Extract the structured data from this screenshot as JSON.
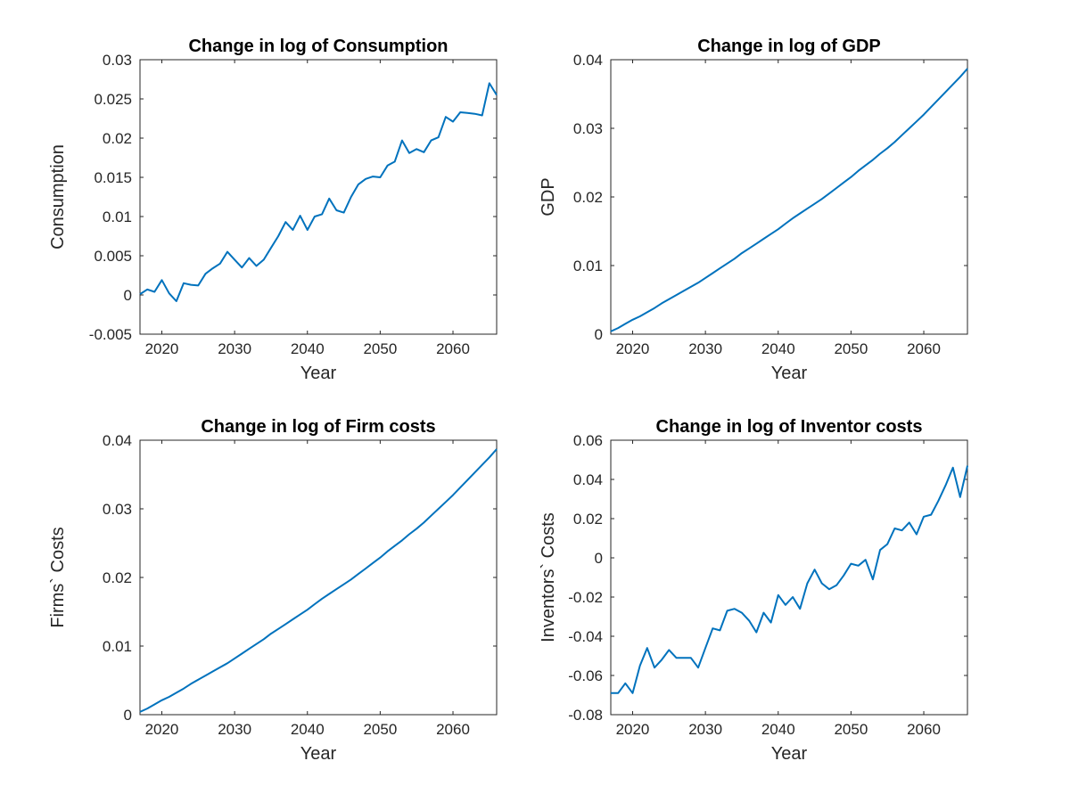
{
  "colors": {
    "line": "#0072bd",
    "axis": "#262626",
    "background": "#ffffff"
  },
  "chart_data": [
    {
      "type": "line",
      "title": "Change in log of Consumption",
      "xlabel": "Year",
      "ylabel": "Consumption",
      "xlim": [
        2017,
        2066
      ],
      "ylim": [
        -0.005,
        0.03
      ],
      "xticks": [
        2020,
        2030,
        2040,
        2050,
        2060
      ],
      "xtick_labels": [
        "2020",
        "2030",
        "2040",
        "2050",
        "2060"
      ],
      "yticks": [
        -0.005,
        0,
        0.005,
        0.01,
        0.015,
        0.02,
        0.025,
        0.03
      ],
      "ytick_labels": [
        "-0.005",
        "0",
        "0.005",
        "0.01",
        "0.015",
        "0.02",
        "0.025",
        "0.03"
      ],
      "grid": false,
      "series": [
        {
          "x": [
            2017,
            2018,
            2019,
            2020,
            2021,
            2022,
            2023,
            2024,
            2025,
            2026,
            2027,
            2028,
            2029,
            2030,
            2031,
            2032,
            2033,
            2034,
            2035,
            2036,
            2037,
            2038,
            2039,
            2040,
            2041,
            2042,
            2043,
            2044,
            2045,
            2046,
            2047,
            2048,
            2049,
            2050,
            2051,
            2052,
            2053,
            2054,
            2055,
            2056,
            2057,
            2058,
            2059,
            2060,
            2061,
            2062,
            2063,
            2064,
            2065,
            2066
          ],
          "y": [
            0.0001,
            0.0007,
            0.0004,
            0.0019,
            0.0002,
            -0.0008,
            0.0015,
            0.0013,
            0.0012,
            0.0027,
            0.0034,
            0.004,
            0.0055,
            0.0045,
            0.0035,
            0.0047,
            0.0037,
            0.0045,
            0.006,
            0.0075,
            0.0093,
            0.0083,
            0.0101,
            0.0083,
            0.01,
            0.0103,
            0.0123,
            0.0108,
            0.0105,
            0.0125,
            0.0141,
            0.0148,
            0.0151,
            0.015,
            0.0165,
            0.017,
            0.0197,
            0.0181,
            0.0186,
            0.0182,
            0.0197,
            0.0201,
            0.0227,
            0.0221,
            0.0233,
            0.0232,
            0.0231,
            0.0229,
            0.027,
            0.0255
          ]
        }
      ]
    },
    {
      "type": "line",
      "title": "Change in log of GDP",
      "xlabel": "Year",
      "ylabel": "GDP",
      "xlim": [
        2017,
        2066
      ],
      "ylim": [
        0,
        0.04
      ],
      "xticks": [
        2020,
        2030,
        2040,
        2050,
        2060
      ],
      "xtick_labels": [
        "2020",
        "2030",
        "2040",
        "2050",
        "2060"
      ],
      "yticks": [
        0,
        0.01,
        0.02,
        0.03,
        0.04
      ],
      "ytick_labels": [
        "0",
        "0.01",
        "0.02",
        "0.03",
        "0.04"
      ],
      "grid": false,
      "series": [
        {
          "x": [
            2017,
            2018,
            2019,
            2020,
            2021,
            2022,
            2023,
            2024,
            2025,
            2026,
            2027,
            2028,
            2029,
            2030,
            2031,
            2032,
            2033,
            2034,
            2035,
            2036,
            2037,
            2038,
            2039,
            2040,
            2041,
            2042,
            2043,
            2044,
            2045,
            2046,
            2047,
            2048,
            2049,
            2050,
            2051,
            2052,
            2053,
            2054,
            2055,
            2056,
            2057,
            2058,
            2059,
            2060,
            2061,
            2062,
            2063,
            2064,
            2065,
            2066
          ],
          "y": [
            0.0004,
            0.0009,
            0.0015,
            0.0021,
            0.0026,
            0.0032,
            0.0038,
            0.0045,
            0.0051,
            0.0057,
            0.0063,
            0.0069,
            0.0075,
            0.0082,
            0.0089,
            0.0096,
            0.0103,
            0.011,
            0.0118,
            0.0125,
            0.0132,
            0.0139,
            0.0146,
            0.0153,
            0.0161,
            0.0169,
            0.0176,
            0.0183,
            0.019,
            0.0197,
            0.0205,
            0.0213,
            0.0221,
            0.0229,
            0.0238,
            0.0246,
            0.0254,
            0.0263,
            0.0271,
            0.028,
            0.029,
            0.03,
            0.031,
            0.032,
            0.0331,
            0.0342,
            0.0353,
            0.0364,
            0.0375,
            0.0387
          ]
        }
      ]
    },
    {
      "type": "line",
      "title": "Change in log of Firm costs",
      "xlabel": "Year",
      "ylabel": "Firms` Costs",
      "xlim": [
        2017,
        2066
      ],
      "ylim": [
        0,
        0.04
      ],
      "xticks": [
        2020,
        2030,
        2040,
        2050,
        2060
      ],
      "xtick_labels": [
        "2020",
        "2030",
        "2040",
        "2050",
        "2060"
      ],
      "yticks": [
        0,
        0.01,
        0.02,
        0.03,
        0.04
      ],
      "ytick_labels": [
        "0",
        "0.01",
        "0.02",
        "0.03",
        "0.04"
      ],
      "grid": false,
      "series": [
        {
          "x": [
            2017,
            2018,
            2019,
            2020,
            2021,
            2022,
            2023,
            2024,
            2025,
            2026,
            2027,
            2028,
            2029,
            2030,
            2031,
            2032,
            2033,
            2034,
            2035,
            2036,
            2037,
            2038,
            2039,
            2040,
            2041,
            2042,
            2043,
            2044,
            2045,
            2046,
            2047,
            2048,
            2049,
            2050,
            2051,
            2052,
            2053,
            2054,
            2055,
            2056,
            2057,
            2058,
            2059,
            2060,
            2061,
            2062,
            2063,
            2064,
            2065,
            2066
          ],
          "y": [
            0.0004,
            0.0009,
            0.0015,
            0.0021,
            0.0026,
            0.0032,
            0.0038,
            0.0045,
            0.0051,
            0.0057,
            0.0063,
            0.0069,
            0.0075,
            0.0082,
            0.0089,
            0.0096,
            0.0103,
            0.011,
            0.0118,
            0.0125,
            0.0132,
            0.0139,
            0.0146,
            0.0153,
            0.0161,
            0.0169,
            0.0176,
            0.0183,
            0.019,
            0.0197,
            0.0205,
            0.0213,
            0.0221,
            0.0229,
            0.0238,
            0.0246,
            0.0254,
            0.0263,
            0.0271,
            0.028,
            0.029,
            0.03,
            0.031,
            0.032,
            0.0331,
            0.0342,
            0.0353,
            0.0364,
            0.0375,
            0.0387
          ]
        }
      ]
    },
    {
      "type": "line",
      "title": "Change in log of Inventor costs",
      "xlabel": "Year",
      "ylabel": "Inventors` Costs",
      "xlim": [
        2017,
        2066
      ],
      "ylim": [
        -0.08,
        0.06
      ],
      "xticks": [
        2020,
        2030,
        2040,
        2050,
        2060
      ],
      "xtick_labels": [
        "2020",
        "2030",
        "2040",
        "2050",
        "2060"
      ],
      "yticks": [
        -0.08,
        -0.06,
        -0.04,
        -0.02,
        0,
        0.02,
        0.04,
        0.06
      ],
      "ytick_labels": [
        "-0.08",
        "-0.06",
        "-0.04",
        "-0.02",
        "0",
        "0.02",
        "0.04",
        "0.06"
      ],
      "grid": false,
      "series": [
        {
          "x": [
            2017,
            2018,
            2019,
            2020,
            2021,
            2022,
            2023,
            2024,
            2025,
            2026,
            2027,
            2028,
            2029,
            2030,
            2031,
            2032,
            2033,
            2034,
            2035,
            2036,
            2037,
            2038,
            2039,
            2040,
            2041,
            2042,
            2043,
            2044,
            2045,
            2046,
            2047,
            2048,
            2049,
            2050,
            2051,
            2052,
            2053,
            2054,
            2055,
            2056,
            2057,
            2058,
            2059,
            2060,
            2061,
            2062,
            2063,
            2064,
            2065,
            2066
          ],
          "y": [
            -0.069,
            -0.069,
            -0.064,
            -0.069,
            -0.055,
            -0.046,
            -0.056,
            -0.052,
            -0.047,
            -0.051,
            -0.051,
            -0.051,
            -0.056,
            -0.046,
            -0.036,
            -0.037,
            -0.027,
            -0.026,
            -0.028,
            -0.032,
            -0.038,
            -0.028,
            -0.033,
            -0.019,
            -0.024,
            -0.02,
            -0.026,
            -0.013,
            -0.006,
            -0.013,
            -0.016,
            -0.014,
            -0.009,
            -0.003,
            -0.004,
            -0.001,
            -0.011,
            0.004,
            0.007,
            0.015,
            0.014,
            0.018,
            0.012,
            0.021,
            0.022,
            0.029,
            0.037,
            0.046,
            0.031,
            0.047
          ]
        }
      ]
    }
  ]
}
